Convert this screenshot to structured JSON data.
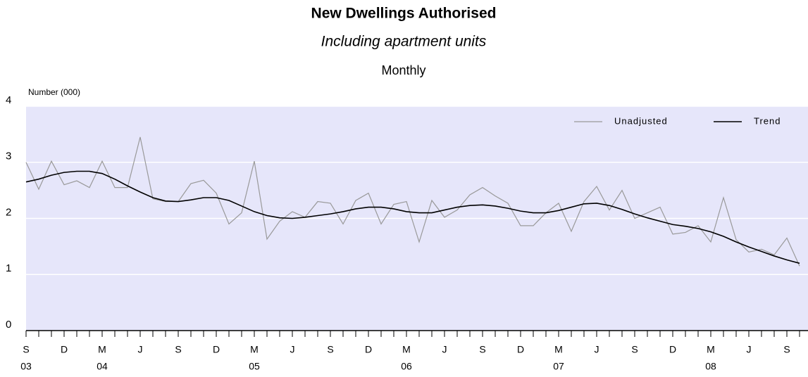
{
  "chart_data": {
    "type": "line",
    "title": "New Dwellings Authorised",
    "subtitle": "Including apartment units",
    "frequency": "Monthly",
    "y_label": "Number (000)",
    "categories": [
      "S",
      null,
      null,
      "D",
      null,
      null,
      "M",
      null,
      null,
      "J",
      null,
      null,
      "S",
      null,
      null,
      "D",
      null,
      null,
      "M",
      null,
      null,
      "J",
      null,
      null,
      "S",
      null,
      null,
      "D",
      null,
      null,
      "M",
      null,
      null,
      "J",
      null,
      null,
      "S",
      null,
      null,
      "D",
      null,
      null,
      "M",
      null,
      null,
      "J",
      null,
      null,
      "S",
      null,
      null,
      "D",
      null,
      null,
      "M",
      null,
      null,
      "J",
      null,
      null,
      "S",
      null
    ],
    "category_years": [
      "03",
      null,
      null,
      null,
      null,
      null,
      "04",
      null,
      null,
      null,
      null,
      null,
      null,
      null,
      null,
      null,
      null,
      null,
      "05",
      null,
      null,
      null,
      null,
      null,
      null,
      null,
      null,
      null,
      null,
      null,
      "06",
      null,
      null,
      null,
      null,
      null,
      null,
      null,
      null,
      null,
      null,
      null,
      "07",
      null,
      null,
      null,
      null,
      null,
      null,
      null,
      null,
      null,
      null,
      null,
      "08",
      null,
      null,
      null,
      null,
      null,
      null,
      null
    ],
    "series": [
      {
        "name": "Unadjusted",
        "color": "#999999",
        "values": [
          3.0,
          2.52,
          3.02,
          2.6,
          2.67,
          2.55,
          3.02,
          2.55,
          2.55,
          3.45,
          2.35,
          2.3,
          2.3,
          2.62,
          2.68,
          2.45,
          1.9,
          2.1,
          3.02,
          1.63,
          1.95,
          2.12,
          2.02,
          2.3,
          2.27,
          1.9,
          2.32,
          2.45,
          1.9,
          2.25,
          2.3,
          1.58,
          2.32,
          2.02,
          2.15,
          2.42,
          2.55,
          2.4,
          2.27,
          1.87,
          1.87,
          2.1,
          2.27,
          1.77,
          2.3,
          2.57,
          2.15,
          2.5,
          2.0,
          2.1,
          2.2,
          1.72,
          1.75,
          1.87,
          1.58,
          2.37,
          1.62,
          1.4,
          1.45,
          1.35,
          1.65,
          1.15
        ]
      },
      {
        "name": "Trend",
        "color": "#000000",
        "values": [
          2.65,
          2.7,
          2.77,
          2.82,
          2.84,
          2.84,
          2.8,
          2.7,
          2.58,
          2.47,
          2.37,
          2.31,
          2.3,
          2.33,
          2.37,
          2.37,
          2.32,
          2.22,
          2.12,
          2.05,
          2.01,
          2.0,
          2.02,
          2.05,
          2.08,
          2.12,
          2.17,
          2.2,
          2.2,
          2.17,
          2.12,
          2.1,
          2.1,
          2.15,
          2.2,
          2.23,
          2.24,
          2.22,
          2.18,
          2.13,
          2.1,
          2.1,
          2.14,
          2.2,
          2.26,
          2.27,
          2.23,
          2.16,
          2.08,
          2.01,
          1.95,
          1.89,
          1.86,
          1.82,
          1.76,
          1.68,
          1.58,
          1.49,
          1.41,
          1.33,
          1.26,
          1.2
        ]
      }
    ],
    "ylim": [
      0,
      4
    ],
    "yticks": [
      0,
      1,
      2,
      3,
      4
    ],
    "grid": true,
    "legend": "top-right",
    "plot_background": "#e6e6fa"
  }
}
